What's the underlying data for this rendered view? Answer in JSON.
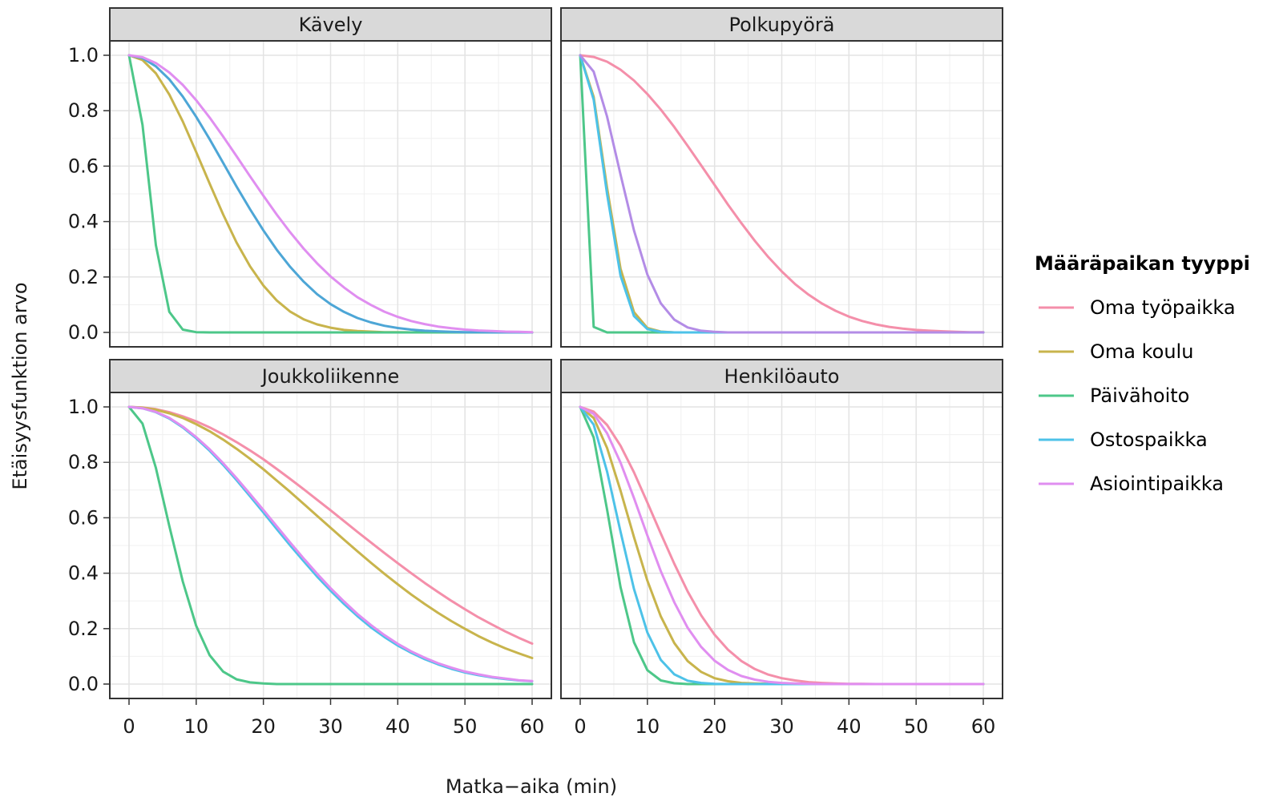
{
  "chart_data": {
    "type": "line",
    "xlabel": "Matka−aika (min)",
    "ylabel": "Etäisyysfunktion arvo",
    "xlim": [
      0,
      60
    ],
    "ylim": [
      0,
      1
    ],
    "x_ticks": [
      0,
      10,
      20,
      30,
      40,
      50,
      60
    ],
    "y_ticks": [
      0.0,
      0.2,
      0.4,
      0.6,
      0.8,
      1.0
    ],
    "x_tick_labels": [
      "0",
      "10",
      "20",
      "30",
      "40",
      "50",
      "60"
    ],
    "y_tick_labels": [
      "0.0",
      "0.2",
      "0.4",
      "0.6",
      "0.8",
      "1.0"
    ],
    "grid": true,
    "legend": {
      "title": "Määräpaikan tyyppi",
      "position": "right",
      "entries": [
        {
          "label": "Oma työpaikka",
          "color": "#F48FAA"
        },
        {
          "label": "Oma koulu",
          "color": "#C8B44C"
        },
        {
          "label": "Päivähoito",
          "color": "#4DC789"
        },
        {
          "label": "Ostospaikka",
          "color": "#4DC2E8"
        },
        {
          "label": "Asiointipaikka",
          "color": "#E08EF0"
        }
      ]
    },
    "x": [
      0,
      2,
      4,
      6,
      8,
      10,
      12,
      14,
      16,
      18,
      20,
      22,
      24,
      26,
      28,
      30,
      32,
      34,
      36,
      38,
      40,
      42,
      44,
      46,
      48,
      50,
      52,
      54,
      56,
      58,
      60
    ],
    "panels": [
      {
        "title": "Kävely",
        "series": [
          {
            "name": "Oma koulu",
            "color": "#C8B44C",
            "values": [
              1.0,
              0.983,
              0.935,
              0.858,
              0.761,
              0.651,
              0.537,
              0.426,
              0.325,
              0.239,
              0.169,
              0.115,
              0.075,
              0.047,
              0.029,
              0.017,
              0.009,
              0.005,
              0.003,
              0.001,
              0.001,
              0,
              0,
              0,
              0,
              0,
              0,
              0,
              0,
              0,
              0
            ]
          },
          {
            "name": "Päivähoito",
            "color": "#4DC789",
            "values": [
              1.0,
              0.749,
              0.315,
              0.074,
              0.01,
              0.001,
              0,
              0,
              0,
              0,
              0,
              0,
              0,
              0,
              0,
              0,
              0,
              0,
              0,
              0,
              0,
              0,
              0,
              0,
              0,
              0,
              0,
              0,
              0,
              0,
              0
            ]
          },
          {
            "name": "Ostospaikka",
            "color": "#4DA6D6",
            "values": [
              1.0,
              0.99,
              0.96,
              0.913,
              0.851,
              0.778,
              0.697,
              0.612,
              0.527,
              0.445,
              0.368,
              0.298,
              0.236,
              0.183,
              0.138,
              0.102,
              0.074,
              0.052,
              0.036,
              0.024,
              0.016,
              0.01,
              0.006,
              0.004,
              0.002,
              0.001,
              0.001,
              0,
              0,
              0,
              0
            ]
          },
          {
            "name": "Asiointipaikka",
            "color": "#E08EF0",
            "values": [
              1.0,
              0.993,
              0.972,
              0.938,
              0.893,
              0.838,
              0.775,
              0.707,
              0.636,
              0.564,
              0.493,
              0.425,
              0.361,
              0.302,
              0.249,
              0.202,
              0.162,
              0.127,
              0.099,
              0.075,
              0.056,
              0.041,
              0.03,
              0.021,
              0.015,
              0.01,
              0.007,
              0.005,
              0.003,
              0.002,
              0.001
            ]
          }
        ]
      },
      {
        "title": "Polkupyörä",
        "series": [
          {
            "name": "Oma työpaikka",
            "color": "#F48FAA",
            "values": [
              1.0,
              0.994,
              0.977,
              0.948,
              0.909,
              0.86,
              0.804,
              0.741,
              0.673,
              0.603,
              0.532,
              0.461,
              0.394,
              0.33,
              0.272,
              0.22,
              0.174,
              0.136,
              0.104,
              0.078,
              0.057,
              0.041,
              0.029,
              0.02,
              0.014,
              0.009,
              0.006,
              0.004,
              0.002,
              0.001,
              0.001
            ]
          },
          {
            "name": "Oma koulu",
            "color": "#C8B44C",
            "values": [
              1.0,
              0.85,
              0.522,
              0.23,
              0.073,
              0.016,
              0.003,
              0,
              0,
              0,
              0,
              0,
              0,
              0,
              0,
              0,
              0,
              0,
              0,
              0,
              0,
              0,
              0,
              0,
              0,
              0,
              0,
              0,
              0,
              0,
              0
            ]
          },
          {
            "name": "Päivähoito",
            "color": "#4DC789",
            "values": [
              1.0,
              0.02,
              0,
              0,
              0,
              0,
              0,
              0,
              0,
              0,
              0,
              0,
              0,
              0,
              0,
              0,
              0,
              0,
              0,
              0,
              0,
              0,
              0,
              0,
              0,
              0,
              0,
              0,
              0,
              0,
              0
            ]
          },
          {
            "name": "Ostospaikka",
            "color": "#4DC2E8",
            "values": [
              1.0,
              0.84,
              0.5,
              0.205,
              0.059,
              0.012,
              0.002,
              0,
              0,
              0,
              0,
              0,
              0,
              0,
              0,
              0,
              0,
              0,
              0,
              0,
              0,
              0,
              0,
              0,
              0,
              0,
              0,
              0,
              0,
              0,
              0
            ]
          },
          {
            "name": "Asiointipaikka",
            "color": "#B38CE6",
            "values": [
              1.0,
              0.941,
              0.779,
              0.57,
              0.368,
              0.209,
              0.105,
              0.046,
              0.018,
              0.006,
              0.002,
              0,
              0,
              0,
              0,
              0,
              0,
              0,
              0,
              0,
              0,
              0,
              0,
              0,
              0,
              0,
              0,
              0,
              0,
              0,
              0
            ]
          }
        ]
      },
      {
        "title": "Joukkoliikenne",
        "series": [
          {
            "name": "Oma työpaikka",
            "color": "#F48FAA",
            "values": [
              1.0,
              0.998,
              0.992,
              0.981,
              0.966,
              0.948,
              0.926,
              0.901,
              0.873,
              0.843,
              0.811,
              0.776,
              0.74,
              0.703,
              0.665,
              0.627,
              0.588,
              0.549,
              0.511,
              0.473,
              0.436,
              0.4,
              0.365,
              0.332,
              0.3,
              0.27,
              0.241,
              0.215,
              0.19,
              0.167,
              0.146
            ]
          },
          {
            "name": "Oma koulu",
            "color": "#C8B44C",
            "values": [
              1.0,
              0.997,
              0.99,
              0.977,
              0.96,
              0.938,
              0.912,
              0.882,
              0.849,
              0.813,
              0.775,
              0.734,
              0.693,
              0.65,
              0.607,
              0.564,
              0.521,
              0.479,
              0.438,
              0.398,
              0.36,
              0.323,
              0.289,
              0.257,
              0.227,
              0.199,
              0.173,
              0.15,
              0.129,
              0.111,
              0.094
            ]
          },
          {
            "name": "Päivähoito",
            "color": "#4DC789",
            "values": [
              1.0,
              0.94,
              0.78,
              0.57,
              0.37,
              0.21,
              0.104,
              0.045,
              0.017,
              0.006,
              0.002,
              0,
              0,
              0,
              0,
              0,
              0,
              0,
              0,
              0,
              0,
              0,
              0,
              0,
              0,
              0,
              0,
              0,
              0,
              0,
              0
            ]
          },
          {
            "name": "Ostospaikka",
            "color": "#4DC2E8",
            "values": [
              1.0,
              0.995,
              0.981,
              0.958,
              0.926,
              0.887,
              0.842,
              0.791,
              0.736,
              0.678,
              0.619,
              0.559,
              0.5,
              0.443,
              0.388,
              0.337,
              0.289,
              0.245,
              0.205,
              0.17,
              0.139,
              0.113,
              0.09,
              0.071,
              0.055,
              0.042,
              0.032,
              0.024,
              0.018,
              0.013,
              0.01
            ]
          },
          {
            "name": "Asiointipaikka",
            "color": "#E08EF0",
            "values": [
              1.0,
              0.995,
              0.982,
              0.96,
              0.929,
              0.891,
              0.847,
              0.797,
              0.743,
              0.686,
              0.628,
              0.569,
              0.51,
              0.453,
              0.398,
              0.346,
              0.298,
              0.253,
              0.213,
              0.177,
              0.145,
              0.118,
              0.095,
              0.075,
              0.059,
              0.045,
              0.035,
              0.026,
              0.02,
              0.014,
              0.011
            ]
          }
        ]
      },
      {
        "title": "Henkilöauto",
        "series": [
          {
            "name": "Oma työpaikka",
            "color": "#F48FAA",
            "values": [
              1.0,
              0.983,
              0.935,
              0.86,
              0.764,
              0.655,
              0.543,
              0.434,
              0.334,
              0.248,
              0.178,
              0.124,
              0.083,
              0.054,
              0.034,
              0.021,
              0.013,
              0.007,
              0.004,
              0.002,
              0.001,
              0.001,
              0,
              0,
              0,
              0,
              0,
              0,
              0,
              0,
              0
            ]
          },
          {
            "name": "Oma koulu",
            "color": "#C8B44C",
            "values": [
              1.0,
              0.96,
              0.852,
              0.698,
              0.53,
              0.373,
              0.244,
              0.148,
              0.083,
              0.044,
              0.021,
              0.01,
              0.004,
              0.002,
              0.001,
              0,
              0,
              0,
              0,
              0,
              0,
              0,
              0,
              0,
              0,
              0,
              0,
              0,
              0,
              0,
              0
            ]
          },
          {
            "name": "Päivähoito",
            "color": "#4DC789",
            "values": [
              1.0,
              0.89,
              0.63,
              0.35,
              0.151,
              0.05,
              0.013,
              0.003,
              0,
              0,
              0,
              0,
              0,
              0,
              0,
              0,
              0,
              0,
              0,
              0,
              0,
              0,
              0,
              0,
              0,
              0,
              0,
              0,
              0,
              0,
              0
            ]
          },
          {
            "name": "Ostospaikka",
            "color": "#4DC2E8",
            "values": [
              1.0,
              0.936,
              0.767,
              0.55,
              0.343,
              0.186,
              0.087,
              0.035,
              0.012,
              0.004,
              0.001,
              0,
              0,
              0,
              0,
              0,
              0,
              0,
              0,
              0,
              0,
              0,
              0,
              0,
              0,
              0,
              0,
              0,
              0,
              0,
              0
            ]
          },
          {
            "name": "Asiointipaikka",
            "color": "#E08EF0",
            "values": [
              1.0,
              0.975,
              0.905,
              0.799,
              0.671,
              0.536,
              0.407,
              0.295,
              0.203,
              0.134,
              0.084,
              0.051,
              0.029,
              0.016,
              0.008,
              0.004,
              0.002,
              0.001,
              0,
              0,
              0,
              0,
              0,
              0,
              0,
              0,
              0,
              0,
              0,
              0,
              0
            ]
          }
        ]
      }
    ]
  }
}
